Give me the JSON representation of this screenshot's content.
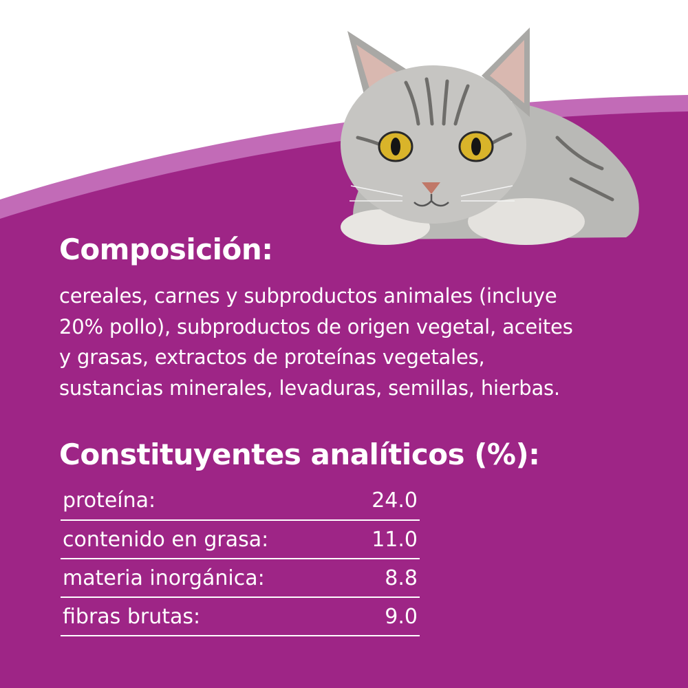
{
  "colors": {
    "background_purple": "#9e2586",
    "light_band": "#c26bb7",
    "text": "#ffffff"
  },
  "image": {
    "subject": "tabby-cat"
  },
  "composition": {
    "title": "Composición:",
    "lines": [
      "cereales, carnes y subproductos animales (incluye",
      "20% pollo), subproductos de origen vegetal, aceites",
      "y grasas, extractos de proteínas vegetales,",
      "sustancias minerales, levaduras, semillas, hierbas."
    ]
  },
  "analytical": {
    "title": "Constituyentes analíticos (%):",
    "rows": [
      {
        "label": "proteína:",
        "value": "24.0"
      },
      {
        "label": "contenido en grasa:",
        "value": "11.0"
      },
      {
        "label": "materia inorgánica:",
        "value": "8.8"
      },
      {
        "label": "fibras brutas:",
        "value": "9.0"
      }
    ]
  }
}
